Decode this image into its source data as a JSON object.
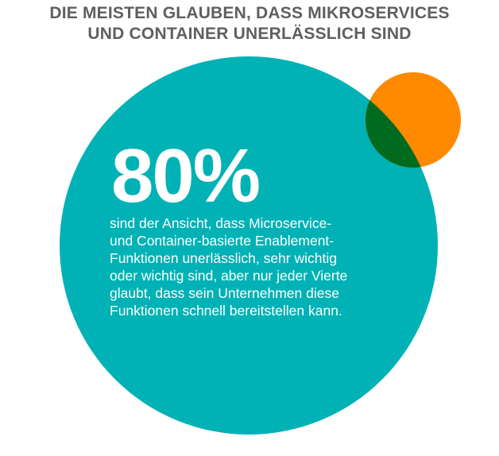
{
  "headline": {
    "line1": "DIE MEISTEN GLAUBEN, DASS MIKROSERVICES",
    "line2": "UND CONTAINER UNERLÄSSLICH SIND"
  },
  "stat": {
    "value": "80%",
    "description_lines": [
      "sind der Ansicht, dass Microservice-",
      "und Container-basierte Enablement-",
      "Funktionen unerlässlich, sehr wichtig",
      "oder wichtig sind, aber nur jeder Vierte",
      "glaubt, dass sein Unternehmen diese",
      "Funktionen schnell bereitstellen kann."
    ]
  },
  "colors": {
    "large_circle": "#00b2b5",
    "small_circle": "#ff8a00",
    "overlap": "#006a1f",
    "headline": "#5f5f5f",
    "text": "#ffffff"
  }
}
